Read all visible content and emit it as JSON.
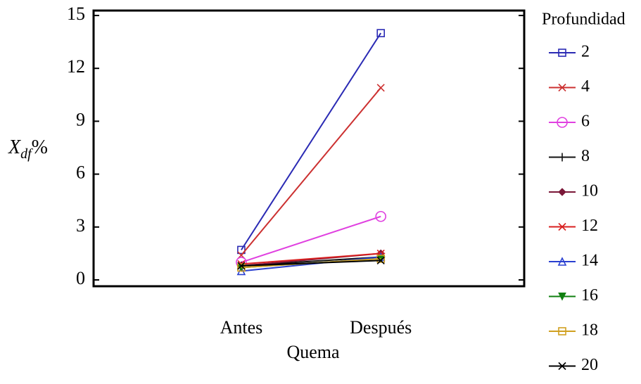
{
  "chart_data": {
    "type": "line",
    "x_label": "Quema",
    "y_label": {
      "main": "X",
      "sub": "df",
      "suffix": "%"
    },
    "legend_title": "Profundidad",
    "legend_position": "right",
    "categories": [
      "Antes",
      "Después"
    ],
    "ylim": [
      -0.36,
      15.28
    ],
    "yticks": [
      0,
      3,
      6,
      9,
      12,
      15
    ],
    "series": [
      {
        "name": "2",
        "color": "#2a2ab4",
        "marker": "square",
        "values": [
          1.7,
          14.0
        ]
      },
      {
        "name": "4",
        "color": "#cc3030",
        "marker": "x",
        "values": [
          1.4,
          10.9
        ]
      },
      {
        "name": "6",
        "color": "#e040e0",
        "marker": "circle",
        "values": [
          1.0,
          3.6
        ]
      },
      {
        "name": "8",
        "color": "#111111",
        "marker": "plus",
        "values": [
          0.8,
          1.3
        ]
      },
      {
        "name": "10",
        "color": "#7a1838",
        "marker": "diamond",
        "values": [
          0.8,
          1.5
        ]
      },
      {
        "name": "12",
        "color": "#d82020",
        "marker": "asterisk",
        "values": [
          0.9,
          1.5
        ]
      },
      {
        "name": "14",
        "color": "#2a40d0",
        "marker": "triangle",
        "values": [
          0.5,
          1.3
        ]
      },
      {
        "name": "16",
        "color": "#108010",
        "marker": "triangle-down",
        "values": [
          0.7,
          1.2
        ]
      },
      {
        "name": "18",
        "color": "#d0a020",
        "marker": "square",
        "values": [
          0.7,
          1.2
        ]
      },
      {
        "name": "20",
        "color": "#000000",
        "marker": "x",
        "values": [
          0.8,
          1.1
        ]
      }
    ]
  }
}
